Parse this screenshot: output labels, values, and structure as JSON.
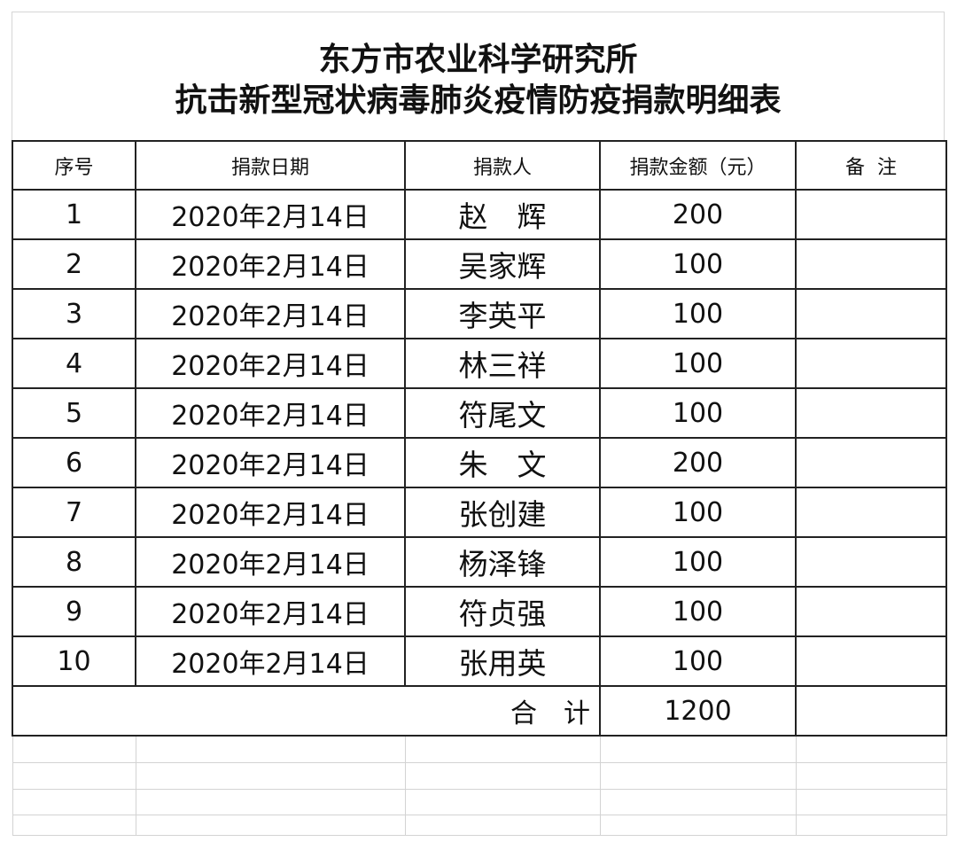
{
  "title": {
    "line1": "东方市农业科学研究所",
    "line2": "抗击新型冠状病毒肺炎疫情防疫捐款明细表"
  },
  "table": {
    "headers": [
      "序号",
      "捐款日期",
      "捐款人",
      "捐款金额（元）",
      "备  注"
    ],
    "rows": [
      {
        "no": "1",
        "date": "2020年2月14日",
        "name": "赵　辉",
        "amount": "200",
        "note": ""
      },
      {
        "no": "2",
        "date": "2020年2月14日",
        "name": "吴家辉",
        "amount": "100",
        "note": ""
      },
      {
        "no": "3",
        "date": "2020年2月14日",
        "name": "李英平",
        "amount": "100",
        "note": ""
      },
      {
        "no": "4",
        "date": "2020年2月14日",
        "name": "林三祥",
        "amount": "100",
        "note": ""
      },
      {
        "no": "5",
        "date": "2020年2月14日",
        "name": "符尾文",
        "amount": "100",
        "note": ""
      },
      {
        "no": "6",
        "date": "2020年2月14日",
        "name": "朱　文",
        "amount": "200",
        "note": ""
      },
      {
        "no": "7",
        "date": "2020年2月14日",
        "name": "张创建",
        "amount": "100",
        "note": ""
      },
      {
        "no": "8",
        "date": "2020年2月14日",
        "name": "杨泽锋",
        "amount": "100",
        "note": ""
      },
      {
        "no": "9",
        "date": "2020年2月14日",
        "name": "符贞强",
        "amount": "100",
        "note": ""
      },
      {
        "no": "10",
        "date": "2020年2月14日",
        "name": "张用英",
        "amount": "100",
        "note": ""
      }
    ],
    "total": {
      "label": "合　计",
      "amount": "1200"
    }
  }
}
